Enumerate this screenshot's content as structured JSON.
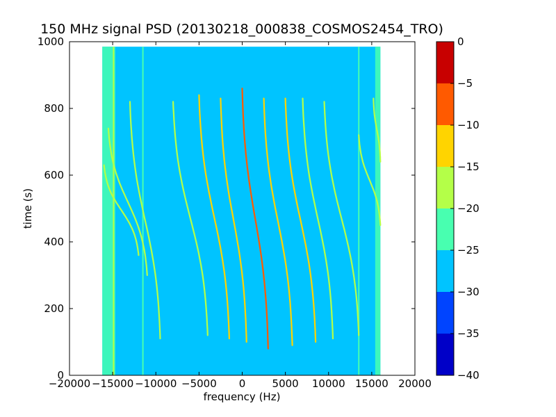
{
  "chart_data": {
    "type": "heatmap",
    "title": "150 MHz signal PSD (20130218_000838_COSMOS2454_TRO)",
    "xlabel": "frequency (Hz)",
    "ylabel": "time (s)",
    "xlim": [
      -20000,
      20000
    ],
    "ylim": [
      0,
      1000
    ],
    "x_ticks": [
      -20000,
      -15000,
      -10000,
      -5000,
      0,
      5000,
      10000,
      15000,
      20000
    ],
    "y_ticks": [
      0,
      200,
      400,
      600,
      800,
      1000
    ],
    "x_tick_labels": [
      "−20000",
      "−15000",
      "−10000",
      "−5000",
      "0",
      "5000",
      "10000",
      "15000",
      "20000"
    ],
    "y_tick_labels": [
      "0",
      "200",
      "400",
      "600",
      "800",
      "1000"
    ],
    "data_extent": {
      "freq": [
        -16200,
        16000
      ],
      "time": [
        0,
        985
      ]
    },
    "background_level": -27.5,
    "edge_bands": [
      {
        "freq": [
          -16200,
          -14700
        ],
        "level": -22.5
      },
      {
        "freq": [
          15400,
          16000
        ],
        "level": -22.5
      }
    ],
    "vertical_lines": [
      {
        "freq": -14900,
        "level": -17.5
      },
      {
        "freq": -11500,
        "level": -22.5
      },
      {
        "freq": 13500,
        "level": -22.5
      }
    ],
    "colorbar": {
      "levels": [
        -40,
        -35,
        -30,
        -25,
        -20,
        -15,
        -10,
        -5,
        0
      ],
      "tick_labels": [
        "−40",
        "−35",
        "−30",
        "−25",
        "−20",
        "−15",
        "−10",
        "−5",
        "0"
      ],
      "colors": [
        "#0000c8",
        "#0044ff",
        "#00c4ff",
        "#48ffb0",
        "#b4ff48",
        "#ffd400",
        "#ff5a00",
        "#c80000"
      ]
    },
    "tracks": [
      {
        "f_top": -16000,
        "f_bot": -12000,
        "t_top": 630,
        "t_bot": 360,
        "level": -17.5
      },
      {
        "f_top": -15500,
        "f_bot": -11000,
        "t_top": 740,
        "t_bot": 300,
        "level": -17.5
      },
      {
        "f_top": -13000,
        "f_bot": -9500,
        "t_top": 820,
        "t_bot": 110,
        "level": -17.5
      },
      {
        "f_top": -8000,
        "f_bot": -4000,
        "t_top": 820,
        "t_bot": 120,
        "level": -17.5
      },
      {
        "f_top": -5000,
        "f_bot": -1500,
        "t_top": 840,
        "t_bot": 110,
        "level": -12.5
      },
      {
        "f_top": -2500,
        "f_bot": 500,
        "t_top": 830,
        "t_bot": 100,
        "level": -12.5
      },
      {
        "f_top": 0,
        "f_bot": 3000,
        "t_top": 860,
        "t_bot": 80,
        "level": -7.5
      },
      {
        "f_top": 2500,
        "f_bot": 5800,
        "t_top": 830,
        "t_bot": 90,
        "level": -12.5
      },
      {
        "f_top": 5000,
        "f_bot": 8500,
        "t_top": 830,
        "t_bot": 100,
        "level": -12.5
      },
      {
        "f_top": 7000,
        "f_bot": 10500,
        "t_top": 830,
        "t_bot": 110,
        "level": -17.5
      },
      {
        "f_top": 9500,
        "f_bot": 13500,
        "t_top": 820,
        "t_bot": 120,
        "level": -17.5
      },
      {
        "f_top": 13500,
        "f_bot": 16000,
        "t_top": 720,
        "t_bot": 450,
        "level": -17.5
      },
      {
        "f_top": 15200,
        "f_bot": 16000,
        "t_top": 830,
        "t_bot": 640,
        "level": -17.5
      }
    ]
  }
}
